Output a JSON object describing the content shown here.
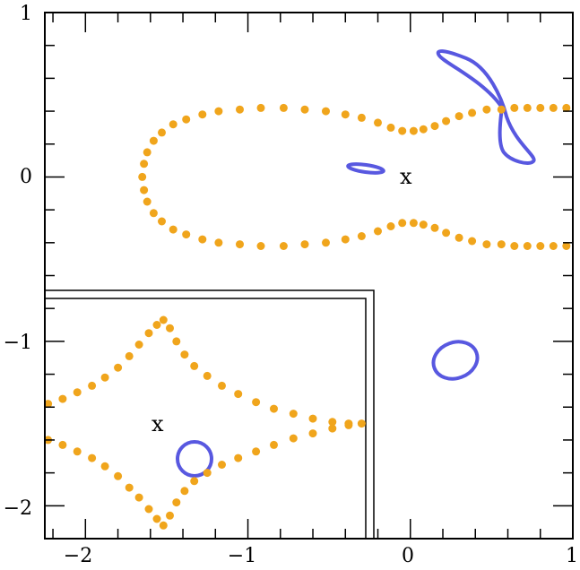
{
  "chart_data": {
    "type": "scatter",
    "title": "",
    "xlabel": "",
    "ylabel": "",
    "xlim": [
      -2.25,
      1.0
    ],
    "ylim": [
      -2.2,
      1.0
    ],
    "x_ticks": [
      {
        "value": -2,
        "label": "−2"
      },
      {
        "value": -1,
        "label": "−1"
      },
      {
        "value": 0,
        "label": "0"
      },
      {
        "value": 1,
        "label": "1"
      }
    ],
    "y_ticks": [
      {
        "value": 1,
        "label": "1"
      },
      {
        "value": 0,
        "label": "0"
      },
      {
        "value": -1,
        "label": "−1"
      },
      {
        "value": -2,
        "label": "−2"
      }
    ],
    "grid": false,
    "colors": {
      "caustic": "#f0a51c",
      "curve": "#5858e0",
      "axes": "#000000"
    },
    "main_caustic_points": [
      [
        -1.65,
        0.0
      ],
      [
        -1.64,
        0.08
      ],
      [
        -1.62,
        0.15
      ],
      [
        -1.58,
        0.22
      ],
      [
        -1.53,
        0.27
      ],
      [
        -1.46,
        0.32
      ],
      [
        -1.38,
        0.35
      ],
      [
        -1.28,
        0.38
      ],
      [
        -1.18,
        0.4
      ],
      [
        -1.05,
        0.41
      ],
      [
        -0.92,
        0.42
      ],
      [
        -0.78,
        0.42
      ],
      [
        -0.65,
        0.41
      ],
      [
        -0.52,
        0.4
      ],
      [
        -0.4,
        0.38
      ],
      [
        -0.3,
        0.36
      ],
      [
        -0.2,
        0.33
      ],
      [
        -0.12,
        0.3
      ],
      [
        -0.05,
        0.28
      ],
      [
        0.02,
        0.28
      ],
      [
        0.08,
        0.29
      ],
      [
        0.15,
        0.31
      ],
      [
        0.22,
        0.34
      ],
      [
        0.3,
        0.37
      ],
      [
        0.38,
        0.39
      ],
      [
        0.47,
        0.41
      ],
      [
        0.56,
        0.41
      ],
      [
        0.64,
        0.42
      ],
      [
        0.72,
        0.42
      ],
      [
        0.8,
        0.42
      ],
      [
        0.88,
        0.42
      ],
      [
        0.96,
        0.42
      ],
      [
        -1.64,
        -0.08
      ],
      [
        -1.62,
        -0.15
      ],
      [
        -1.58,
        -0.22
      ],
      [
        -1.53,
        -0.27
      ],
      [
        -1.46,
        -0.32
      ],
      [
        -1.38,
        -0.35
      ],
      [
        -1.28,
        -0.38
      ],
      [
        -1.18,
        -0.4
      ],
      [
        -1.05,
        -0.41
      ],
      [
        -0.92,
        -0.42
      ],
      [
        -0.78,
        -0.42
      ],
      [
        -0.65,
        -0.41
      ],
      [
        -0.52,
        -0.4
      ],
      [
        -0.4,
        -0.38
      ],
      [
        -0.3,
        -0.36
      ],
      [
        -0.2,
        -0.33
      ],
      [
        -0.12,
        -0.3
      ],
      [
        -0.05,
        -0.28
      ],
      [
        0.02,
        -0.28
      ],
      [
        0.08,
        -0.29
      ],
      [
        0.15,
        -0.31
      ],
      [
        0.22,
        -0.34
      ],
      [
        0.3,
        -0.37
      ],
      [
        0.38,
        -0.39
      ],
      [
        0.47,
        -0.41
      ],
      [
        0.56,
        -0.41
      ],
      [
        0.64,
        -0.42
      ],
      [
        0.72,
        -0.42
      ],
      [
        0.8,
        -0.42
      ],
      [
        0.88,
        -0.42
      ],
      [
        0.96,
        -0.42
      ]
    ],
    "inset_caustic_points": [
      [
        -2.23,
        -1.38
      ],
      [
        -2.14,
        -1.35
      ],
      [
        -2.05,
        -1.31
      ],
      [
        -1.96,
        -1.27
      ],
      [
        -1.88,
        -1.22
      ],
      [
        -1.8,
        -1.16
      ],
      [
        -1.73,
        -1.09
      ],
      [
        -1.67,
        -1.02
      ],
      [
        -1.61,
        -0.95
      ],
      [
        -1.56,
        -0.9
      ],
      [
        -1.52,
        -0.87
      ],
      [
        -1.48,
        -0.92
      ],
      [
        -1.44,
        -1.0
      ],
      [
        -1.39,
        -1.08
      ],
      [
        -1.33,
        -1.15
      ],
      [
        -1.25,
        -1.21
      ],
      [
        -1.16,
        -1.27
      ],
      [
        -1.06,
        -1.32
      ],
      [
        -0.95,
        -1.37
      ],
      [
        -0.84,
        -1.41
      ],
      [
        -0.72,
        -1.44
      ],
      [
        -0.6,
        -1.47
      ],
      [
        -0.48,
        -1.49
      ],
      [
        -0.38,
        -1.5
      ],
      [
        -0.3,
        -1.5
      ],
      [
        -2.23,
        -1.6
      ],
      [
        -2.14,
        -1.63
      ],
      [
        -2.05,
        -1.67
      ],
      [
        -1.96,
        -1.71
      ],
      [
        -1.88,
        -1.76
      ],
      [
        -1.8,
        -1.82
      ],
      [
        -1.73,
        -1.89
      ],
      [
        -1.67,
        -1.95
      ],
      [
        -1.61,
        -2.02
      ],
      [
        -1.56,
        -2.08
      ],
      [
        -1.52,
        -2.12
      ],
      [
        -1.48,
        -2.06
      ],
      [
        -1.44,
        -1.98
      ],
      [
        -1.39,
        -1.91
      ],
      [
        -1.33,
        -1.85
      ],
      [
        -1.25,
        -1.8
      ],
      [
        -1.16,
        -1.75
      ],
      [
        -1.06,
        -1.71
      ],
      [
        -0.95,
        -1.67
      ],
      [
        -0.84,
        -1.63
      ],
      [
        -0.72,
        -1.59
      ],
      [
        -0.6,
        -1.56
      ],
      [
        -0.48,
        -1.53
      ],
      [
        -0.38,
        -1.51
      ]
    ],
    "markers": [
      {
        "x": 0.0,
        "y": 0.0,
        "label": "x"
      },
      {
        "x": -1.52,
        "y": -1.5,
        "label": "x"
      }
    ]
  }
}
